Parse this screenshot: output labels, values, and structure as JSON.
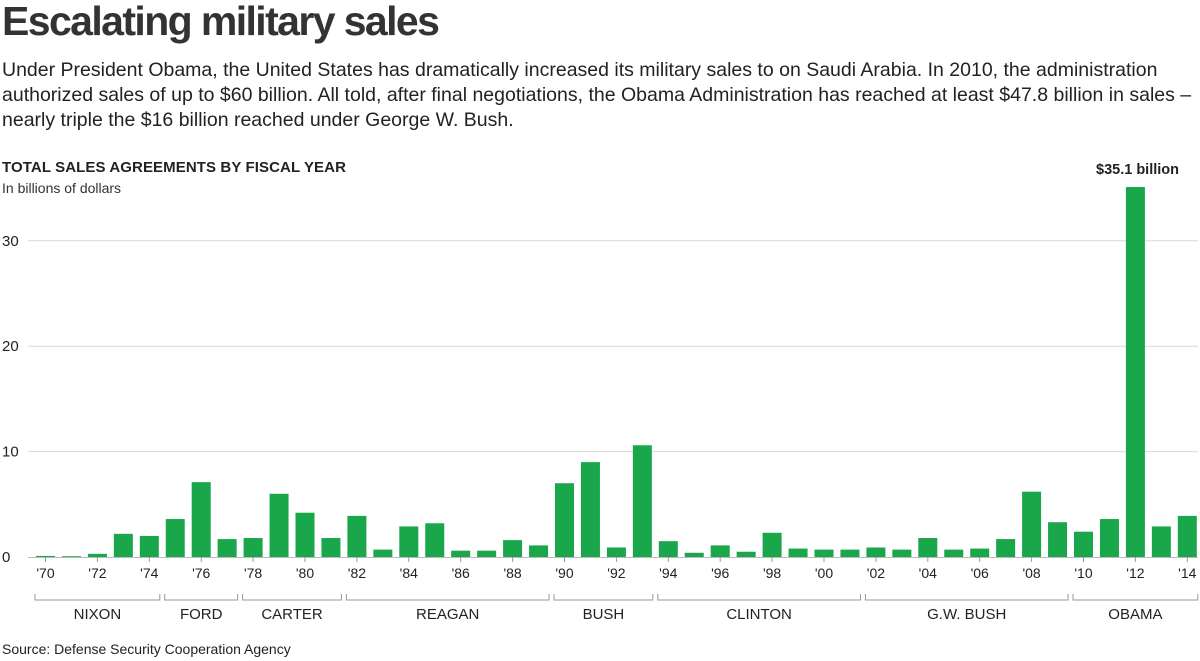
{
  "header": {
    "title": "Escalating military sales",
    "dek": "Under President Obama, the United States has dramatically increased its military sales to on Saudi Arabia. In 2010, the administration authorized sales of up to $60 billion. All told, after final negotiations, the Obama Administration has reached at least $47.8 billion in sales – nearly triple the $16 billion reached under George W. Bush."
  },
  "source": "Source: Defense Security Cooperation Agency",
  "colors": {
    "bar": "#1aa64a",
    "grid": "#d9d9d9",
    "axis": "#999999",
    "text": "#222222"
  },
  "chart_data": {
    "type": "bar",
    "title": "TOTAL SALES AGREEMENTS BY FISCAL YEAR",
    "subtitle": "In billions of dollars",
    "ylim": [
      0,
      35.1
    ],
    "yticks": [
      0,
      10,
      20,
      30
    ],
    "grid": true,
    "categories": [
      "1970",
      "1971",
      "1972",
      "1973",
      "1974",
      "1975",
      "1976",
      "1977",
      "1978",
      "1979",
      "1980",
      "1981",
      "1982",
      "1983",
      "1984",
      "1985",
      "1986",
      "1987",
      "1988",
      "1989",
      "1990",
      "1991",
      "1992",
      "1993",
      "1994",
      "1995",
      "1996",
      "1997",
      "1998",
      "1999",
      "2000",
      "2001",
      "2002",
      "2003",
      "2004",
      "2005",
      "2006",
      "2007",
      "2008",
      "2009",
      "2010",
      "2011",
      "2012",
      "2013",
      "2014"
    ],
    "tick_labels": [
      {
        "i": 0,
        "label": "'70"
      },
      {
        "i": 2,
        "label": "'72"
      },
      {
        "i": 4,
        "label": "'74"
      },
      {
        "i": 6,
        "label": "'76"
      },
      {
        "i": 8,
        "label": "'78"
      },
      {
        "i": 10,
        "label": "'80"
      },
      {
        "i": 12,
        "label": "'82"
      },
      {
        "i": 14,
        "label": "'84"
      },
      {
        "i": 16,
        "label": "'86"
      },
      {
        "i": 18,
        "label": "'88"
      },
      {
        "i": 20,
        "label": "'90"
      },
      {
        "i": 22,
        "label": "'92"
      },
      {
        "i": 24,
        "label": "'94"
      },
      {
        "i": 26,
        "label": "'96"
      },
      {
        "i": 28,
        "label": "'98"
      },
      {
        "i": 30,
        "label": "'00"
      },
      {
        "i": 32,
        "label": "'02"
      },
      {
        "i": 34,
        "label": "'04"
      },
      {
        "i": 36,
        "label": "'06"
      },
      {
        "i": 38,
        "label": "'08"
      },
      {
        "i": 40,
        "label": "'10"
      },
      {
        "i": 42,
        "label": "'12"
      },
      {
        "i": 44,
        "label": "'14"
      }
    ],
    "values": [
      0.1,
      0.05,
      0.3,
      2.2,
      2.0,
      3.6,
      7.1,
      1.7,
      1.8,
      6.0,
      4.2,
      1.8,
      3.9,
      0.7,
      2.9,
      3.2,
      0.6,
      0.6,
      1.6,
      1.1,
      7.0,
      9.0,
      0.9,
      10.6,
      1.5,
      0.4,
      1.1,
      0.5,
      2.3,
      0.8,
      0.7,
      0.7,
      0.9,
      0.7,
      1.8,
      0.7,
      0.8,
      1.7,
      6.2,
      3.3,
      2.4,
      3.6,
      35.1,
      2.9,
      3.9
    ],
    "annotations": [
      {
        "i": 42,
        "label": "$35.1 billion"
      }
    ],
    "administrations": [
      {
        "label": "NIXON",
        "start": 0,
        "end": 4
      },
      {
        "label": "FORD",
        "start": 5,
        "end": 7
      },
      {
        "label": "CARTER",
        "start": 8,
        "end": 11
      },
      {
        "label": "REAGAN",
        "start": 12,
        "end": 19
      },
      {
        "label": "BUSH",
        "start": 20,
        "end": 23
      },
      {
        "label": "CLINTON",
        "start": 24,
        "end": 31
      },
      {
        "label": "G.W. BUSH",
        "start": 32,
        "end": 39
      },
      {
        "label": "OBAMA",
        "start": 40,
        "end": 44
      }
    ]
  }
}
